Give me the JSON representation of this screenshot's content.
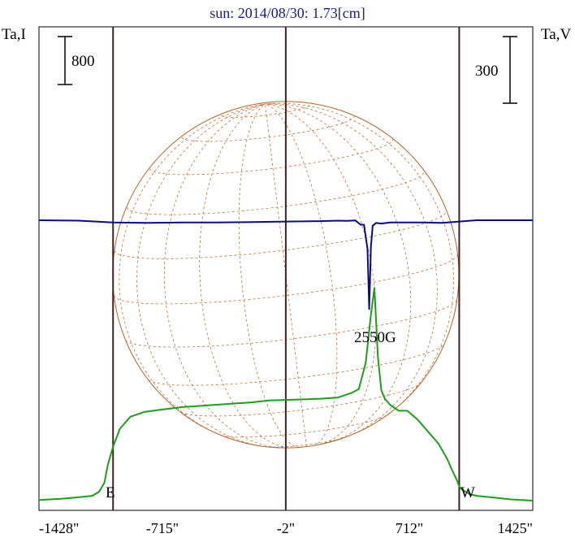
{
  "title": "sun: 2014/08/30: 1.73[cm]",
  "left_axis_label": "Ta,I",
  "right_axis_label": "Ta,V",
  "left_scale_bar_label": "800",
  "right_scale_bar_label": "300",
  "east_label": "E",
  "west_label": "W",
  "annotation": "2550G",
  "colors": {
    "frame": "#000000",
    "limb_lines": "#4a1f1f",
    "disk": "#b5642a",
    "grid": "#c0703a",
    "intensity": "#1aa01a",
    "polarization": "#0a0a8c",
    "title": "#1a1a8c"
  },
  "chart_data": {
    "type": "line",
    "title": "sun: 2014/08/30: 1.73[cm]",
    "xlabel": "",
    "x_unit": "arcsec",
    "x_tick_labels": [
      "-1428\"",
      "-715\"",
      "-2\"",
      "712\"",
      "1425\""
    ],
    "x_ticks": [
      -1428,
      -715,
      -2,
      712,
      1425
    ],
    "xlim": [
      -1428,
      1425
    ],
    "limb_lines_x": [
      -1000,
      -2,
      1000
    ],
    "series": [
      {
        "name": "Ta,I",
        "color": "#1aa01a",
        "x": [
          -1428,
          -1300,
          -1200,
          -1120,
          -1080,
          -1050,
          -1030,
          -1000,
          -960,
          -900,
          -820,
          -715,
          -600,
          -500,
          -400,
          -300,
          -200,
          -100,
          -2,
          100,
          200,
          300,
          380,
          420,
          460,
          490,
          510,
          530,
          550,
          570,
          600,
          650,
          700,
          760,
          820,
          880,
          930,
          960,
          990,
          1000,
          1010,
          1030,
          1060,
          1100,
          1200,
          1300,
          1425
        ],
        "values": [
          10,
          30,
          55,
          80,
          150,
          300,
          600,
          900,
          1200,
          1400,
          1480,
          1520,
          1560,
          1580,
          1600,
          1620,
          1640,
          1670,
          1680,
          1690,
          1700,
          1720,
          1800,
          1860,
          2300,
          3100,
          3550,
          2400,
          1840,
          1700,
          1600,
          1500,
          1500,
          1350,
          1150,
          950,
          700,
          500,
          320,
          240,
          200,
          160,
          110,
          80,
          50,
          20,
          0
        ]
      },
      {
        "name": "Ta,V",
        "color": "#0a0a8c",
        "x": [
          -1428,
          -1200,
          -1000,
          -800,
          -600,
          -400,
          -200,
          -2,
          200,
          300,
          350,
          400,
          430,
          450,
          470,
          480,
          490,
          500,
          520,
          550,
          600,
          700,
          800,
          900,
          1000,
          1100,
          1200,
          1425
        ],
        "values": [
          0,
          -2,
          -10,
          -12,
          -10,
          -10,
          -8,
          -6,
          -4,
          -2,
          -3,
          -1,
          -20,
          -20,
          -130,
          -400,
          -120,
          -25,
          -12,
          -15,
          -10,
          -10,
          -10,
          -12,
          -6,
          0,
          0,
          0
        ]
      }
    ],
    "scale_bars": [
      {
        "axis": "Ta,I",
        "value": 800
      },
      {
        "axis": "Ta,V",
        "value": 300
      }
    ]
  }
}
